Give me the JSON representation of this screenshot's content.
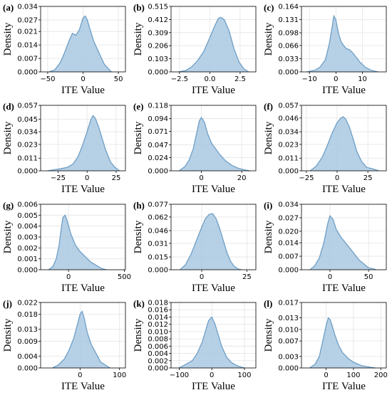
{
  "style": {
    "curve_color": "#6e9fc6",
    "fill_color": "#a9c8e2",
    "grid_color": "#e4e4e4",
    "axis_color": "#000000"
  },
  "chart_data": [
    {
      "type": "area",
      "panel_label": "(a)",
      "xlabel": "ITE Value",
      "ylabel": "Density",
      "grid": true,
      "xlim": [
        -60,
        60
      ],
      "ylim": [
        0,
        0.034
      ],
      "xticks": [
        -50,
        0,
        50
      ],
      "xtick_labels": [
        "−50",
        "0",
        "50"
      ],
      "yticks": [
        0,
        0.007,
        0.014,
        0.021,
        0.027,
        0.034
      ],
      "ytick_labels": [
        "0.000",
        "0.007",
        "0.014",
        "0.021",
        "0.027",
        "0.034"
      ],
      "x": [
        -48,
        -40,
        -32,
        -26,
        -20,
        -15,
        -10,
        -5,
        0,
        3,
        6,
        10,
        15,
        20,
        25,
        30,
        35,
        40
      ],
      "y": [
        0.0,
        0.001,
        0.005,
        0.01,
        0.016,
        0.02,
        0.019,
        0.022,
        0.028,
        0.029,
        0.027,
        0.022,
        0.016,
        0.012,
        0.008,
        0.004,
        0.002,
        0.0
      ]
    },
    {
      "type": "area",
      "panel_label": "(b)",
      "xlabel": "ITE Value",
      "ylabel": "Density",
      "grid": true,
      "xlim": [
        -3.2,
        3.8
      ],
      "ylim": [
        0,
        0.515
      ],
      "xticks": [
        -2.5,
        0.0,
        2.5
      ],
      "xtick_labels": [
        "−2.5",
        "0.0",
        "2.5"
      ],
      "yticks": [
        0,
        0.103,
        0.206,
        0.309,
        0.412,
        0.515
      ],
      "ytick_labels": [
        "0.000",
        "0.103",
        "0.206",
        "0.309",
        "0.412",
        "0.515"
      ],
      "x": [
        -2.6,
        -2.0,
        -1.5,
        -1.0,
        -0.5,
        0.0,
        0.4,
        0.7,
        0.9,
        1.2,
        1.6,
        2.0,
        2.4,
        2.8,
        3.2
      ],
      "y": [
        0.0,
        0.01,
        0.04,
        0.09,
        0.16,
        0.27,
        0.36,
        0.42,
        0.43,
        0.41,
        0.32,
        0.18,
        0.08,
        0.025,
        0.0
      ]
    },
    {
      "type": "area",
      "panel_label": "(c)",
      "xlabel": "ITE Value",
      "ylabel": "Density",
      "grid": true,
      "xlim": [
        -13,
        19
      ],
      "ylim": [
        0,
        0.164
      ],
      "xticks": [
        -10,
        0,
        10
      ],
      "xtick_labels": [
        "−10",
        "0",
        "10"
      ],
      "yticks": [
        0,
        0.033,
        0.066,
        0.098,
        0.131,
        0.164
      ],
      "ytick_labels": [
        "0.000",
        "0.033",
        "0.066",
        "0.098",
        "0.131",
        "0.164"
      ],
      "x": [
        -11,
        -8,
        -6,
        -4,
        -2.5,
        -1.5,
        -0.8,
        0,
        1,
        2,
        3,
        4,
        5,
        6,
        7,
        9,
        11,
        13,
        15,
        16
      ],
      "y": [
        0.0,
        0.004,
        0.012,
        0.03,
        0.07,
        0.11,
        0.14,
        0.13,
        0.095,
        0.075,
        0.065,
        0.058,
        0.056,
        0.05,
        0.042,
        0.025,
        0.012,
        0.005,
        0.001,
        0.0
      ]
    },
    {
      "type": "area",
      "panel_label": "(d)",
      "xlabel": "ITE Value",
      "ylabel": "Density",
      "grid": true,
      "xlim": [
        -40,
        33
      ],
      "ylim": [
        0,
        0.057
      ],
      "xticks": [
        -25,
        0,
        25
      ],
      "xtick_labels": [
        "−25",
        "0",
        "25"
      ],
      "yticks": [
        0,
        0.011,
        0.023,
        0.034,
        0.045,
        0.057
      ],
      "ytick_labels": [
        "0.000",
        "0.011",
        "0.023",
        "0.034",
        "0.045",
        "0.057"
      ],
      "x": [
        -34,
        -28,
        -22,
        -17,
        -12,
        -8,
        -4,
        0,
        3,
        5,
        7,
        10,
        13,
        16,
        20,
        24,
        28
      ],
      "y": [
        0.0,
        0.001,
        0.002,
        0.003,
        0.006,
        0.012,
        0.022,
        0.034,
        0.044,
        0.048,
        0.046,
        0.038,
        0.028,
        0.018,
        0.008,
        0.003,
        0.0
      ]
    },
    {
      "type": "area",
      "panel_label": "(e)",
      "xlabel": "ITE Value",
      "ylabel": "Density",
      "grid": true,
      "xlim": [
        -15,
        27
      ],
      "ylim": [
        0,
        0.118
      ],
      "xticks": [
        0,
        20
      ],
      "xtick_labels": [
        "0",
        "20"
      ],
      "yticks": [
        0,
        0.024,
        0.047,
        0.071,
        0.094,
        0.118
      ],
      "ytick_labels": [
        "0.000",
        "0.024",
        "0.047",
        "0.071",
        "0.094",
        "0.118"
      ],
      "x": [
        -11,
        -8,
        -6,
        -4,
        -2.5,
        -1,
        0,
        1.5,
        3,
        5,
        7,
        9,
        12,
        15,
        18,
        21,
        24
      ],
      "y": [
        0.0,
        0.008,
        0.02,
        0.04,
        0.065,
        0.09,
        0.096,
        0.088,
        0.068,
        0.05,
        0.04,
        0.03,
        0.018,
        0.01,
        0.005,
        0.002,
        0.0
      ]
    },
    {
      "type": "area",
      "panel_label": "(f)",
      "xlabel": "ITE Value",
      "ylabel": "Density",
      "grid": true,
      "xlim": [
        -29,
        40
      ],
      "ylim": [
        0,
        0.057
      ],
      "xticks": [
        -25,
        0,
        25
      ],
      "xtick_labels": [
        "−25",
        "0",
        "25"
      ],
      "yticks": [
        0,
        0.011,
        0.023,
        0.034,
        0.046,
        0.057
      ],
      "ytick_labels": [
        "0.000",
        "0.011",
        "0.023",
        "0.034",
        "0.046",
        "0.057"
      ],
      "x": [
        -22,
        -17,
        -12,
        -8,
        -4,
        0,
        3,
        5,
        7,
        10,
        13,
        16,
        20,
        24,
        28,
        31,
        34
      ],
      "y": [
        0.0,
        0.004,
        0.012,
        0.022,
        0.033,
        0.042,
        0.046,
        0.047,
        0.045,
        0.038,
        0.028,
        0.017,
        0.008,
        0.003,
        0.002,
        0.001,
        0.0
      ]
    },
    {
      "type": "area",
      "panel_label": "(g)",
      "xlabel": "ITE Value",
      "ylabel": "Density",
      "grid": true,
      "xlim": [
        -250,
        510
      ],
      "ylim": [
        0,
        0.006
      ],
      "xticks": [
        0,
        500
      ],
      "xtick_labels": [
        "0",
        "500"
      ],
      "yticks": [
        0,
        0.001,
        0.002,
        0.003,
        0.004,
        0.005,
        0.006
      ],
      "ytick_labels": [
        "0.000",
        "0.001",
        "0.002",
        "0.003",
        "0.004",
        "0.005",
        "0.006"
      ],
      "x": [
        -180,
        -140,
        -110,
        -85,
        -65,
        -50,
        -30,
        -10,
        20,
        60,
        100,
        150,
        200,
        250,
        300,
        340
      ],
      "y": [
        0.0,
        0.0003,
        0.001,
        0.0022,
        0.0038,
        0.0048,
        0.005,
        0.0044,
        0.0033,
        0.0023,
        0.0017,
        0.0012,
        0.0007,
        0.0004,
        0.0001,
        0.0
      ]
    },
    {
      "type": "area",
      "panel_label": "(h)",
      "xlabel": "ITE Value",
      "ylabel": "Density",
      "grid": true,
      "xlim": [
        -17,
        30
      ],
      "ylim": [
        0,
        0.077
      ],
      "xticks": [
        0,
        25
      ],
      "xtick_labels": [
        "0",
        "25"
      ],
      "yticks": [
        0,
        0.015,
        0.031,
        0.046,
        0.062,
        0.077
      ],
      "ytick_labels": [
        "0.000",
        "0.015",
        "0.031",
        "0.046",
        "0.062",
        "0.077"
      ],
      "x": [
        -12,
        -9,
        -6,
        -3,
        0,
        2,
        4,
        6,
        8,
        10,
        12,
        14,
        16,
        18,
        20,
        22
      ],
      "y": [
        0.0,
        0.006,
        0.018,
        0.034,
        0.05,
        0.06,
        0.065,
        0.066,
        0.06,
        0.048,
        0.034,
        0.02,
        0.01,
        0.004,
        0.001,
        0.0
      ]
    },
    {
      "type": "area",
      "panel_label": "(i)",
      "xlabel": "ITE Value",
      "ylabel": "Density",
      "grid": true,
      "xlim": [
        -37,
        73
      ],
      "ylim": [
        0,
        0.034
      ],
      "xticks": [
        0,
        50
      ],
      "xtick_labels": [
        "0",
        "50"
      ],
      "yticks": [
        0,
        0.007,
        0.014,
        0.02,
        0.027,
        0.034
      ],
      "ytick_labels": [
        "0.000",
        "0.007",
        "0.014",
        "0.020",
        "0.027",
        "0.034"
      ],
      "x": [
        -26,
        -20,
        -14,
        -8,
        -3,
        0,
        4,
        8,
        14,
        20,
        26,
        32,
        38,
        44,
        50,
        56,
        60
      ],
      "y": [
        0.0,
        0.002,
        0.006,
        0.014,
        0.024,
        0.028,
        0.026,
        0.021,
        0.017,
        0.014,
        0.011,
        0.008,
        0.005,
        0.003,
        0.001,
        0.0005,
        0.0
      ]
    },
    {
      "type": "area",
      "panel_label": "(j)",
      "xlabel": "ITE Value",
      "ylabel": "Density",
      "grid": true,
      "xlim": [
        -100,
        115
      ],
      "ylim": [
        0,
        0.022
      ],
      "xticks": [
        0,
        100
      ],
      "xtick_labels": [
        "0",
        "100"
      ],
      "yticks": [
        0,
        0.004,
        0.009,
        0.013,
        0.018,
        0.022
      ],
      "ytick_labels": [
        "0.000",
        "0.004",
        "0.009",
        "0.013",
        "0.018",
        "0.022"
      ],
      "x": [
        -70,
        -55,
        -40,
        -28,
        -16,
        -6,
        0,
        5,
        10,
        18,
        28,
        40,
        52,
        64,
        76
      ],
      "y": [
        0.0,
        0.001,
        0.003,
        0.006,
        0.01,
        0.015,
        0.018,
        0.019,
        0.017,
        0.012,
        0.008,
        0.005,
        0.002,
        0.001,
        0.0
      ]
    },
    {
      "type": "area",
      "panel_label": "(k)",
      "xlabel": "ITE Value",
      "ylabel": "Density",
      "grid": true,
      "xlim": [
        -125,
        135
      ],
      "ylim": [
        0,
        0.018
      ],
      "xticks": [
        -100,
        0,
        100
      ],
      "xtick_labels": [
        "−100",
        "0",
        "100"
      ],
      "yticks": [
        0,
        0.002,
        0.004,
        0.006,
        0.008,
        0.01,
        0.012,
        0.014,
        0.016,
        0.018
      ],
      "ytick_labels": [
        "0.000",
        "0.002",
        "0.004",
        "0.006",
        "0.008",
        "0.010",
        "0.012",
        "0.014",
        "0.016",
        "0.018"
      ],
      "x": [
        -100,
        -80,
        -60,
        -45,
        -30,
        -20,
        -10,
        0,
        10,
        20,
        30,
        45,
        60,
        80,
        100
      ],
      "y": [
        0.0,
        0.001,
        0.002,
        0.004,
        0.007,
        0.01,
        0.013,
        0.014,
        0.012,
        0.009,
        0.006,
        0.003,
        0.0015,
        0.0005,
        0.0
      ]
    },
    {
      "type": "area",
      "panel_label": "(l)",
      "xlabel": "ITE Value",
      "ylabel": "Density",
      "grid": true,
      "xlim": [
        -90,
        220
      ],
      "ylim": [
        0,
        0.017
      ],
      "xticks": [
        0,
        100,
        200
      ],
      "xtick_labels": [
        "0",
        "100",
        "200"
      ],
      "yticks": [
        0,
        0.003,
        0.007,
        0.01,
        0.013,
        0.017
      ],
      "ytick_labels": [
        "0.000",
        "0.003",
        "0.007",
        "0.010",
        "0.013",
        "0.017"
      ],
      "x": [
        -60,
        -40,
        -25,
        -12,
        0,
        8,
        15,
        22,
        30,
        45,
        60,
        80,
        100,
        130,
        160,
        180
      ],
      "y": [
        0.0,
        0.001,
        0.003,
        0.007,
        0.011,
        0.013,
        0.0125,
        0.011,
        0.009,
        0.006,
        0.004,
        0.0025,
        0.0015,
        0.0006,
        0.0002,
        0.0
      ]
    }
  ]
}
